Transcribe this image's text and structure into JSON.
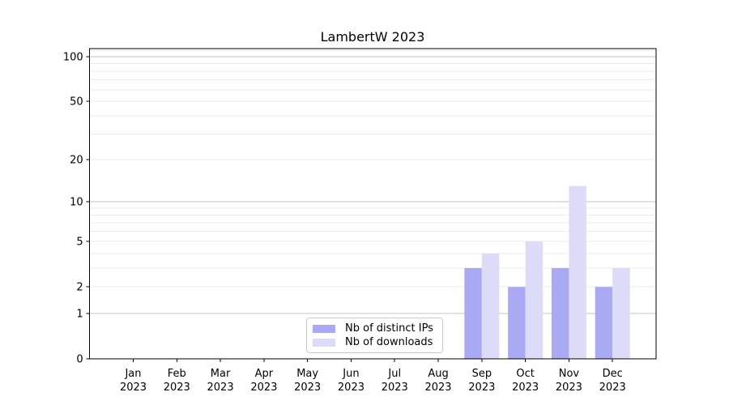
{
  "title": "LambertW 2023",
  "legend": {
    "items": [
      {
        "label": "Nb of distinct IPs",
        "color": "#a9a9f4"
      },
      {
        "label": "Nb of downloads",
        "color": "#dcdcf9"
      }
    ]
  },
  "chart_data": {
    "type": "bar",
    "title": "LambertW 2023",
    "categories": [
      "Jan 2023",
      "Feb 2023",
      "Mar 2023",
      "Apr 2023",
      "May 2023",
      "Jun 2023",
      "Jul 2023",
      "Aug 2023",
      "Sep 2023",
      "Oct 2023",
      "Nov 2023",
      "Dec 2023"
    ],
    "series": [
      {
        "name": "Nb of distinct IPs",
        "color": "#a9a9f4",
        "values": [
          0,
          0,
          0,
          0,
          0,
          0,
          0,
          0,
          3,
          2,
          3,
          2
        ]
      },
      {
        "name": "Nb of downloads",
        "color": "#dcdcf9",
        "values": [
          0,
          0,
          0,
          0,
          0,
          0,
          0,
          0,
          4,
          5,
          13,
          3
        ]
      }
    ],
    "xlabel": "",
    "ylabel": "",
    "yscale": "log1p",
    "ytick_values": [
      0,
      1,
      2,
      5,
      10,
      20,
      50,
      100
    ],
    "minor_grid_values": [
      2,
      3,
      4,
      5,
      6,
      7,
      8,
      9,
      20,
      30,
      40,
      50,
      60,
      70,
      80,
      90,
      110
    ],
    "major_grid_values": [
      1,
      10,
      100
    ],
    "ylim": [
      0,
      113
    ],
    "grid": true,
    "legend_position": "lower center"
  }
}
